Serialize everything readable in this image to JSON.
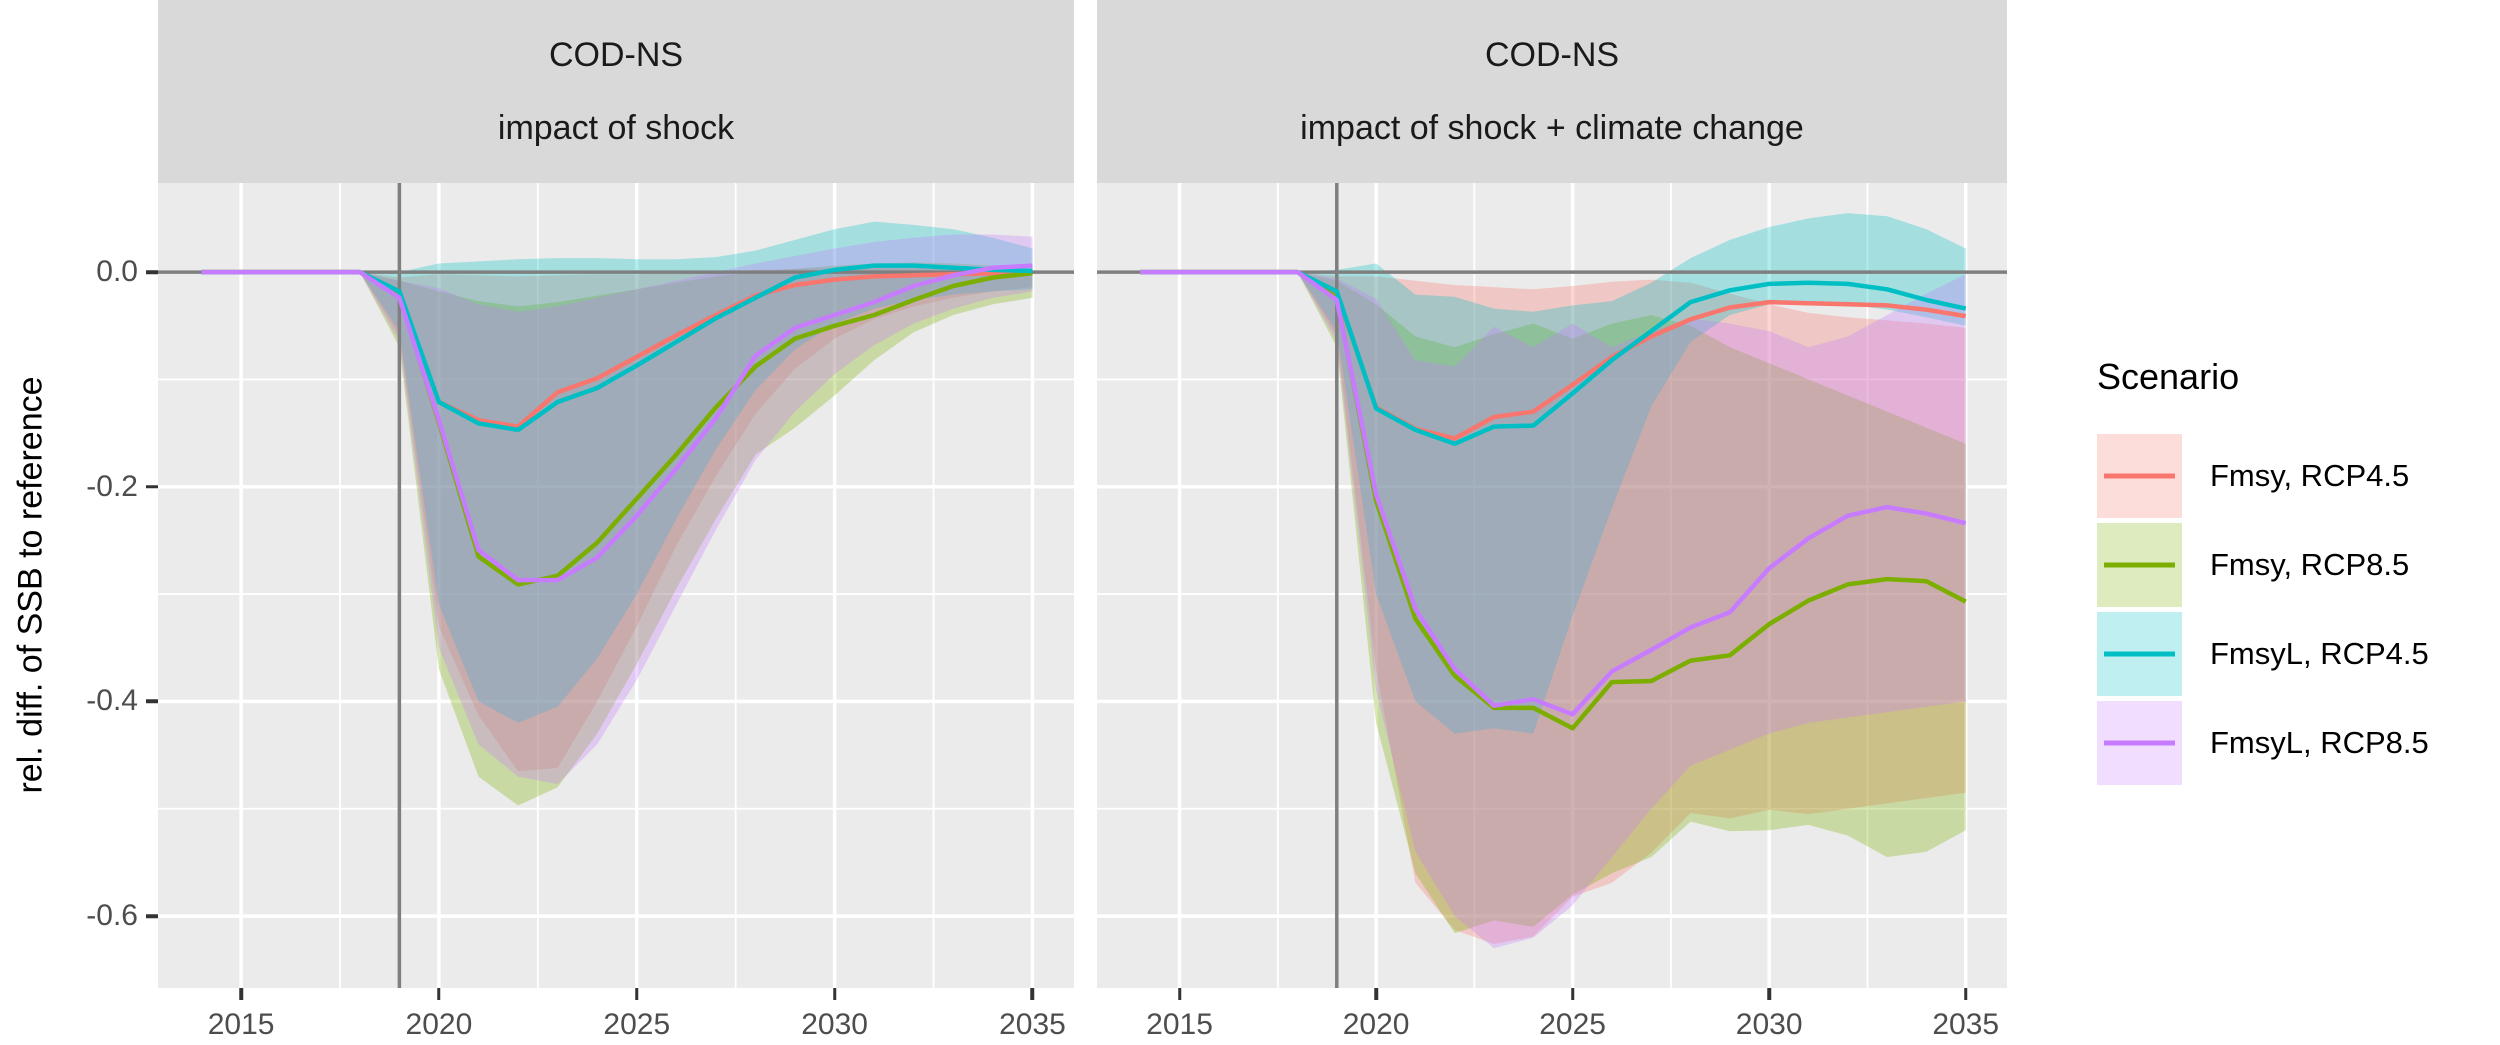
{
  "y_axis_title": "rel. diff. of SSB to reference",
  "legend": {
    "title": "Scenario",
    "items": [
      {
        "label": "Fmsy, RCP4.5",
        "color": "#F8766D"
      },
      {
        "label": "Fmsy, RCP8.5",
        "color": "#7CAE00"
      },
      {
        "label": "FmsyL, RCP4.5",
        "color": "#00BFC4"
      },
      {
        "label": "FmsyL, RCP8.5",
        "color": "#C77CFF"
      }
    ]
  },
  "chart_data": {
    "type": "line",
    "x": [
      2014,
      2015,
      2016,
      2017,
      2018,
      2019,
      2020,
      2021,
      2022,
      2023,
      2024,
      2025,
      2026,
      2027,
      2028,
      2029,
      2030,
      2031,
      2032,
      2033,
      2034,
      2035
    ],
    "xlim": [
      2012.9,
      2036.05
    ],
    "ylim_top": 0.083,
    "ylim_bottom": -0.667,
    "x_major_ticks": [
      2015,
      2020,
      2025,
      2030,
      2035
    ],
    "x_minor_ticks": [
      2017.5,
      2022.5,
      2027.5,
      2032.5
    ],
    "y_major_ticks": [
      {
        "label": "0.0",
        "value": 0.0
      },
      {
        "label": "-0.2",
        "value": -0.2
      },
      {
        "label": "-0.4",
        "value": -0.4
      },
      {
        "label": "-0.6",
        "value": -0.6
      }
    ],
    "y_minor_ticks": [
      -0.1,
      -0.3,
      -0.5
    ],
    "hline": 0,
    "shock_year": 2019,
    "ribbon_alpha": 0.3,
    "panel_bg": "#EBEBEB",
    "strip_bg": "#D9D9D9",
    "grid_color": "#FFFFFF",
    "refline_color": "#7F7F7F",
    "panels": [
      {
        "id": "left",
        "strip_line1": "COD-NS",
        "strip_line2": "impact of shock",
        "series": [
          {
            "name": "Fmsy, RCP4.5",
            "color": "#F8766D",
            "values": [
              0,
              0,
              0,
              0,
              0,
              -0.02,
              -0.121,
              -0.138,
              -0.144,
              -0.112,
              -0.099,
              -0.079,
              -0.059,
              -0.04,
              -0.022,
              -0.012,
              -0.007,
              -0.004,
              -0.003,
              -0.002,
              -0.001,
              0.0
            ],
            "lower": [
              0,
              0,
              0,
              0,
              0,
              -0.06,
              -0.33,
              -0.413,
              -0.465,
              -0.462,
              -0.4,
              -0.33,
              -0.255,
              -0.19,
              -0.132,
              -0.09,
              -0.062,
              -0.044,
              -0.032,
              -0.024,
              -0.018,
              -0.014
            ],
            "upper": [
              0,
              0,
              0,
              0,
              0,
              -0.005,
              -0.002,
              -0.003,
              -0.004,
              -0.003,
              -0.002,
              -0.002,
              -0.001,
              0.0,
              0.002,
              0.003,
              0.004,
              0.004,
              0.004,
              0.003,
              0.002,
              0.002
            ]
          },
          {
            "name": "Fmsy, RCP8.5",
            "color": "#7CAE00",
            "values": [
              0,
              0,
              0,
              0,
              0,
              -0.022,
              -0.14,
              -0.265,
              -0.291,
              -0.283,
              -0.252,
              -0.211,
              -0.17,
              -0.126,
              -0.088,
              -0.062,
              -0.05,
              -0.04,
              -0.026,
              -0.013,
              -0.005,
              -0.001
            ],
            "lower": [
              0,
              0,
              0,
              0,
              0,
              -0.07,
              -0.37,
              -0.47,
              -0.497,
              -0.48,
              -0.43,
              -0.365,
              -0.295,
              -0.23,
              -0.17,
              -0.145,
              -0.115,
              -0.082,
              -0.056,
              -0.04,
              -0.03,
              -0.024
            ],
            "upper": [
              0,
              0,
              0,
              0,
              0,
              -0.008,
              -0.018,
              -0.027,
              -0.032,
              -0.028,
              -0.022,
              -0.016,
              -0.01,
              -0.004,
              0.0,
              0.003,
              0.006,
              0.008,
              0.009,
              0.008,
              0.006,
              0.004
            ]
          },
          {
            "name": "FmsyL, RCP4.5",
            "color": "#00BFC4",
            "values": [
              0,
              0,
              0,
              0,
              0,
              -0.018,
              -0.121,
              -0.141,
              -0.147,
              -0.121,
              -0.108,
              -0.087,
              -0.065,
              -0.043,
              -0.024,
              -0.005,
              0.002,
              0.006,
              0.006,
              0.004,
              0.002,
              0.001
            ],
            "lower": [
              0,
              0,
              0,
              0,
              0,
              -0.055,
              -0.31,
              -0.4,
              -0.42,
              -0.405,
              -0.36,
              -0.3,
              -0.23,
              -0.165,
              -0.11,
              -0.072,
              -0.048,
              -0.034,
              -0.026,
              -0.021,
              -0.018,
              -0.016
            ],
            "upper": [
              0,
              0,
              0,
              0,
              0,
              0.0,
              0.008,
              0.01,
              0.012,
              0.013,
              0.013,
              0.012,
              0.012,
              0.014,
              0.02,
              0.03,
              0.04,
              0.047,
              0.044,
              0.04,
              0.032,
              0.022
            ]
          },
          {
            "name": "FmsyL, RCP8.5",
            "color": "#C77CFF",
            "values": [
              0,
              0,
              0,
              0,
              0,
              -0.024,
              -0.138,
              -0.259,
              -0.287,
              -0.287,
              -0.266,
              -0.227,
              -0.183,
              -0.136,
              -0.078,
              -0.052,
              -0.04,
              -0.028,
              -0.013,
              -0.003,
              0.004,
              0.006
            ],
            "lower": [
              0,
              0,
              0,
              0,
              0,
              -0.065,
              -0.35,
              -0.44,
              -0.47,
              -0.477,
              -0.44,
              -0.38,
              -0.31,
              -0.24,
              -0.175,
              -0.13,
              -0.095,
              -0.068,
              -0.048,
              -0.034,
              -0.024,
              -0.018
            ],
            "upper": [
              0,
              0,
              0,
              0,
              0,
              -0.008,
              -0.015,
              -0.03,
              -0.037,
              -0.032,
              -0.024,
              -0.016,
              -0.008,
              0.0,
              0.008,
              0.015,
              0.022,
              0.028,
              0.032,
              0.035,
              0.035,
              0.033
            ]
          }
        ]
      },
      {
        "id": "right",
        "strip_line1": "COD-NS",
        "strip_line2": "impact of shock + climate change",
        "series": [
          {
            "name": "Fmsy, RCP4.5",
            "color": "#F8766D",
            "values": [
              0,
              0,
              0,
              0,
              0,
              -0.02,
              -0.126,
              -0.146,
              -0.155,
              -0.135,
              -0.13,
              -0.105,
              -0.079,
              -0.06,
              -0.044,
              -0.033,
              -0.028,
              -0.029,
              -0.03,
              -0.031,
              -0.035,
              -0.041
            ],
            "lower": [
              0,
              0,
              0,
              0,
              0,
              -0.06,
              -0.37,
              -0.569,
              -0.613,
              -0.626,
              -0.619,
              -0.582,
              -0.569,
              -0.541,
              -0.504,
              -0.509,
              -0.501,
              -0.505,
              -0.5,
              -0.495,
              -0.49,
              -0.485
            ],
            "upper": [
              0,
              0,
              0,
              0,
              0,
              -0.004,
              -0.004,
              -0.008,
              -0.012,
              -0.014,
              -0.016,
              -0.013,
              -0.009,
              -0.007,
              -0.01,
              -0.02,
              -0.03,
              -0.038,
              -0.042,
              -0.045,
              -0.048,
              -0.052
            ]
          },
          {
            "name": "Fmsy, RCP8.5",
            "color": "#7CAE00",
            "values": [
              0,
              0,
              0,
              0,
              0,
              -0.024,
              -0.213,
              -0.323,
              -0.376,
              -0.406,
              -0.406,
              -0.425,
              -0.382,
              -0.381,
              -0.362,
              -0.357,
              -0.328,
              -0.306,
              -0.291,
              -0.286,
              -0.288,
              -0.307
            ],
            "lower": [
              0,
              0,
              0,
              0,
              0,
              -0.07,
              -0.42,
              -0.56,
              -0.616,
              -0.604,
              -0.61,
              -0.58,
              -0.56,
              -0.545,
              -0.512,
              -0.521,
              -0.52,
              -0.515,
              -0.525,
              -0.545,
              -0.54,
              -0.52
            ],
            "upper": [
              0,
              0,
              0,
              0,
              0,
              -0.008,
              -0.03,
              -0.06,
              -0.07,
              -0.058,
              -0.048,
              -0.062,
              -0.048,
              -0.04,
              -0.05,
              -0.07,
              -0.085,
              -0.1,
              -0.115,
              -0.13,
              -0.145,
              -0.16
            ]
          },
          {
            "name": "FmsyL, RCP4.5",
            "color": "#00BFC4",
            "values": [
              0,
              0,
              0,
              0,
              0,
              -0.018,
              -0.127,
              -0.147,
              -0.16,
              -0.144,
              -0.143,
              -0.113,
              -0.082,
              -0.055,
              -0.028,
              -0.017,
              -0.011,
              -0.01,
              -0.011,
              -0.016,
              -0.026,
              -0.034
            ],
            "lower": [
              0,
              0,
              0,
              0,
              0,
              -0.055,
              -0.3,
              -0.4,
              -0.43,
              -0.425,
              -0.43,
              -0.32,
              -0.22,
              -0.125,
              -0.065,
              -0.04,
              -0.03,
              -0.028,
              -0.03,
              -0.035,
              -0.042,
              -0.05
            ],
            "upper": [
              0,
              0,
              0,
              0,
              0,
              0.002,
              0.008,
              -0.021,
              -0.023,
              -0.034,
              -0.037,
              -0.031,
              -0.027,
              -0.01,
              0.013,
              0.03,
              0.042,
              0.05,
              0.055,
              0.052,
              0.04,
              0.022
            ]
          },
          {
            "name": "FmsyL, RCP8.5",
            "color": "#C77CFF",
            "values": [
              0,
              0,
              0,
              0,
              0,
              -0.026,
              -0.207,
              -0.314,
              -0.37,
              -0.404,
              -0.398,
              -0.412,
              -0.372,
              -0.352,
              -0.331,
              -0.317,
              -0.276,
              -0.248,
              -0.227,
              -0.219,
              -0.225,
              -0.234
            ],
            "lower": [
              0,
              0,
              0,
              0,
              0,
              -0.065,
              -0.39,
              -0.54,
              -0.6,
              -0.63,
              -0.62,
              -0.59,
              -0.545,
              -0.5,
              -0.46,
              -0.445,
              -0.43,
              -0.42,
              -0.415,
              -0.41,
              -0.405,
              -0.4
            ],
            "upper": [
              0,
              0,
              0,
              0,
              0,
              -0.006,
              -0.025,
              -0.082,
              -0.088,
              -0.051,
              -0.07,
              -0.048,
              -0.07,
              -0.055,
              -0.043,
              -0.048,
              -0.055,
              -0.07,
              -0.06,
              -0.04,
              -0.02,
              -0.002
            ]
          }
        ]
      }
    ]
  },
  "layout_note": ""
}
